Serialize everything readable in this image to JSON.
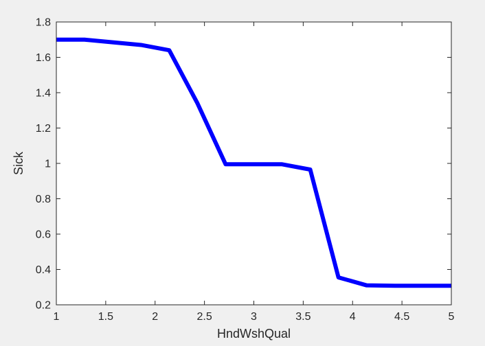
{
  "chart_data": {
    "type": "line",
    "title": "",
    "xlabel": "HndWshQual",
    "ylabel": "Sick",
    "xlim": [
      1,
      5
    ],
    "ylim": [
      0.2,
      1.8
    ],
    "xticks": [
      1,
      1.5,
      2,
      2.5,
      3,
      3.5,
      4,
      4.5,
      5
    ],
    "xtick_labels": [
      "1",
      "1.5",
      "2",
      "2.5",
      "3",
      "3.5",
      "4",
      "4.5",
      "5"
    ],
    "yticks": [
      0.2,
      0.4,
      0.6,
      0.8,
      1.0,
      1.2,
      1.4,
      1.6,
      1.8
    ],
    "ytick_labels": [
      "0.2",
      "0.4",
      "0.6",
      "0.8",
      "1",
      "1.2",
      "1.4",
      "1.6",
      "1.8"
    ],
    "grid": false,
    "legend": "none",
    "series": [
      {
        "color": "#0000ff",
        "x": [
          1.0,
          1.286,
          1.571,
          1.857,
          2.143,
          2.429,
          2.714,
          3.0,
          3.286,
          3.571,
          3.857,
          4.143,
          4.429,
          4.714,
          5.0
        ],
        "y": [
          1.7,
          1.7,
          1.685,
          1.67,
          1.64,
          1.34,
          0.995,
          0.995,
          0.995,
          0.965,
          0.355,
          0.31,
          0.308,
          0.308,
          0.308
        ]
      }
    ]
  }
}
